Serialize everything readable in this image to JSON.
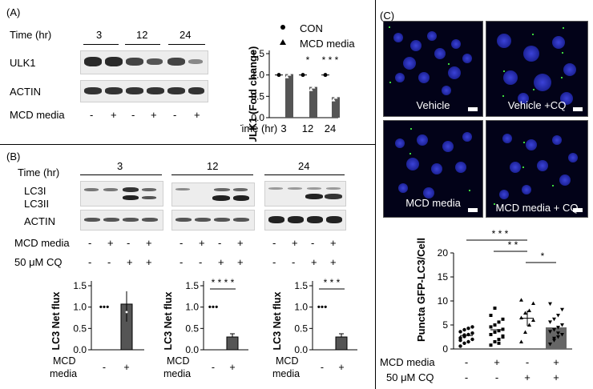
{
  "panelA": {
    "label": "(A)",
    "time_label": "Time (hr)",
    "times": [
      "3",
      "12",
      "24"
    ],
    "rows": [
      "ULK1",
      "ACTIN"
    ],
    "treatment_label": "MCD media",
    "treatment_signs": [
      "-",
      "+",
      "-",
      "+",
      "-",
      "+"
    ],
    "chart": {
      "ylabel": "ULK1 (Fold change)",
      "legend": [
        "CON",
        "MCD media"
      ],
      "xlabel": "Time (hr)",
      "categories": [
        "3",
        "12",
        "24"
      ],
      "yticks": [
        "0.0",
        "0.5",
        "1.0",
        "1.5"
      ],
      "sig": [
        "*",
        "* * *"
      ]
    }
  },
  "panelB": {
    "label": "(B)",
    "time_label": "Time (hr)",
    "times": [
      "3",
      "12",
      "24"
    ],
    "rows": [
      "LC3I",
      "LC3II",
      "ACTIN"
    ],
    "mcd_label": "MCD media",
    "cq_label": "50 μM CQ",
    "mcd_signs": [
      "-",
      "+",
      "-",
      "+"
    ],
    "cq_signs": [
      "-",
      "-",
      "+",
      "+"
    ],
    "chart_ylabel": "LC3 Net flux",
    "chart_x_label_1": "MCD",
    "chart_x_label_2": "media",
    "chart_signs": [
      "-",
      "+"
    ],
    "yticks": [
      "0.0",
      "0.5",
      "1.0",
      "1.5"
    ],
    "sigs": [
      "",
      "* * * *",
      "* * *"
    ]
  },
  "panelC": {
    "label": "(C)",
    "images": [
      "Vehicle",
      "Vehicle +CQ",
      "MCD media",
      "MCD media + CQ"
    ],
    "chart": {
      "ylabel": "Puncta GFP-LC3/Cell",
      "yticks": [
        "0",
        "5",
        "10",
        "15",
        "20"
      ],
      "row1_label": "MCD media",
      "row2_label": "50 μM CQ",
      "row1_signs": [
        "-",
        "+",
        "-",
        "+"
      ],
      "row2_signs": [
        "-",
        "-",
        "+",
        "+"
      ],
      "sig": [
        "* * *",
        "* *",
        "*"
      ]
    }
  },
  "chart_data": [
    {
      "type": "bar",
      "ylabel": "ULK1 (Fold change)",
      "xlabel": "Time (hr)",
      "categories": [
        "3",
        "12",
        "24"
      ],
      "ylim": [
        0,
        1.5
      ],
      "series": [
        {
          "name": "CON",
          "values": [
            1.0,
            1.0,
            1.0
          ]
        },
        {
          "name": "MCD media",
          "values": [
            1.02,
            0.72,
            0.48
          ]
        }
      ]
    },
    {
      "type": "bar",
      "ylabel": "LC3 Net flux",
      "categories": [
        "-",
        "+"
      ],
      "ylim": [
        0,
        1.5
      ],
      "values": [
        1.0,
        1.07
      ]
    },
    {
      "type": "bar",
      "ylabel": "LC3 Net flux",
      "categories": [
        "-",
        "+"
      ],
      "ylim": [
        0,
        1.5
      ],
      "values": [
        1.0,
        0.3
      ]
    },
    {
      "type": "bar",
      "ylabel": "LC3 Net flux",
      "categories": [
        "-",
        "+"
      ],
      "ylim": [
        0,
        1.5
      ],
      "values": [
        1.0,
        0.3
      ]
    },
    {
      "type": "bar",
      "ylabel": "Puncta GFP-LC3/Cell",
      "categories": [
        "Vehicle",
        "MCD media",
        "Vehicle +CQ",
        "MCD media + CQ"
      ],
      "ylim": [
        0,
        20
      ],
      "values": [
        2.8,
        4.0,
        6.4,
        4.5
      ]
    }
  ]
}
